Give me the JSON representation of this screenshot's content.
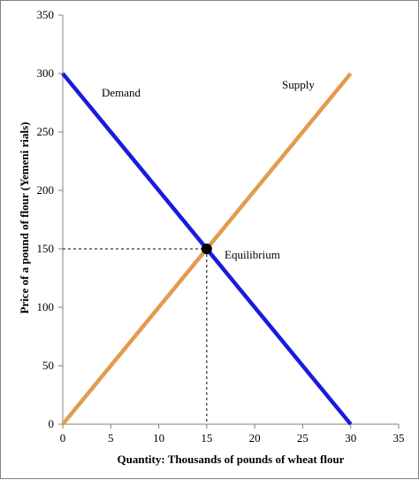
{
  "chart_data": {
    "type": "line",
    "xlabel": "Quantity: Thousands of pounds of wheat flour",
    "ylabel": "Price of a pound of flour (Yemeni rials)",
    "xlim": [
      0,
      35
    ],
    "ylim": [
      0,
      350
    ],
    "x_ticks": [
      0,
      5,
      10,
      15,
      20,
      25,
      30,
      35
    ],
    "y_ticks": [
      0,
      50,
      100,
      150,
      200,
      250,
      300,
      350
    ],
    "grid": false,
    "series": [
      {
        "name": "Demand",
        "color": "#1a1adf",
        "points": [
          [
            0,
            300
          ],
          [
            30,
            0
          ]
        ]
      },
      {
        "name": "Supply",
        "color": "#e39b4f",
        "points": [
          [
            0,
            0
          ],
          [
            30,
            300
          ]
        ]
      }
    ],
    "equilibrium": {
      "label": "Equilibrium",
      "x": 15,
      "y": 150
    },
    "guide_lines": "dashed"
  }
}
